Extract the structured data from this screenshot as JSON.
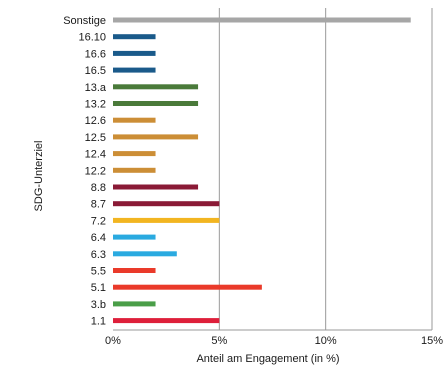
{
  "chart_data": {
    "type": "bar",
    "orientation": "horizontal",
    "title": "",
    "xlabel": "Anteil am Engagement (in %)",
    "ylabel": "SDG-Unterziel",
    "xlim": [
      0,
      15
    ],
    "x_ticks": [
      {
        "value": 0,
        "label": "0%"
      },
      {
        "value": 5,
        "label": "5%"
      },
      {
        "value": 10,
        "label": "10%"
      },
      {
        "value": 15,
        "label": "15%"
      }
    ],
    "grid": "vertical",
    "legend": "none",
    "categories": [
      "Sonstige",
      "16.10",
      "16.6",
      "16.5",
      "13.a",
      "13.2",
      "12.6",
      "12.5",
      "12.4",
      "12.2",
      "8.8",
      "8.7",
      "7.2",
      "6.4",
      "6.3",
      "5.5",
      "5.1",
      "3.b",
      "1.1"
    ],
    "values": [
      14,
      2,
      2,
      2,
      4,
      4,
      2,
      4,
      2,
      2,
      4,
      5,
      5,
      2,
      3,
      2,
      7,
      2,
      5
    ],
    "colors": [
      "#a6a6a6",
      "#1a5a8a",
      "#1a5a8a",
      "#1a5a8a",
      "#4a7a3a",
      "#4a7a3a",
      "#cc8e36",
      "#cc8e36",
      "#cc8e36",
      "#cc8e36",
      "#8a1a36",
      "#8a1a36",
      "#f2b521",
      "#2aaae0",
      "#2aaae0",
      "#ea3a2a",
      "#ea3a2a",
      "#4a9e48",
      "#de1f3a"
    ]
  }
}
